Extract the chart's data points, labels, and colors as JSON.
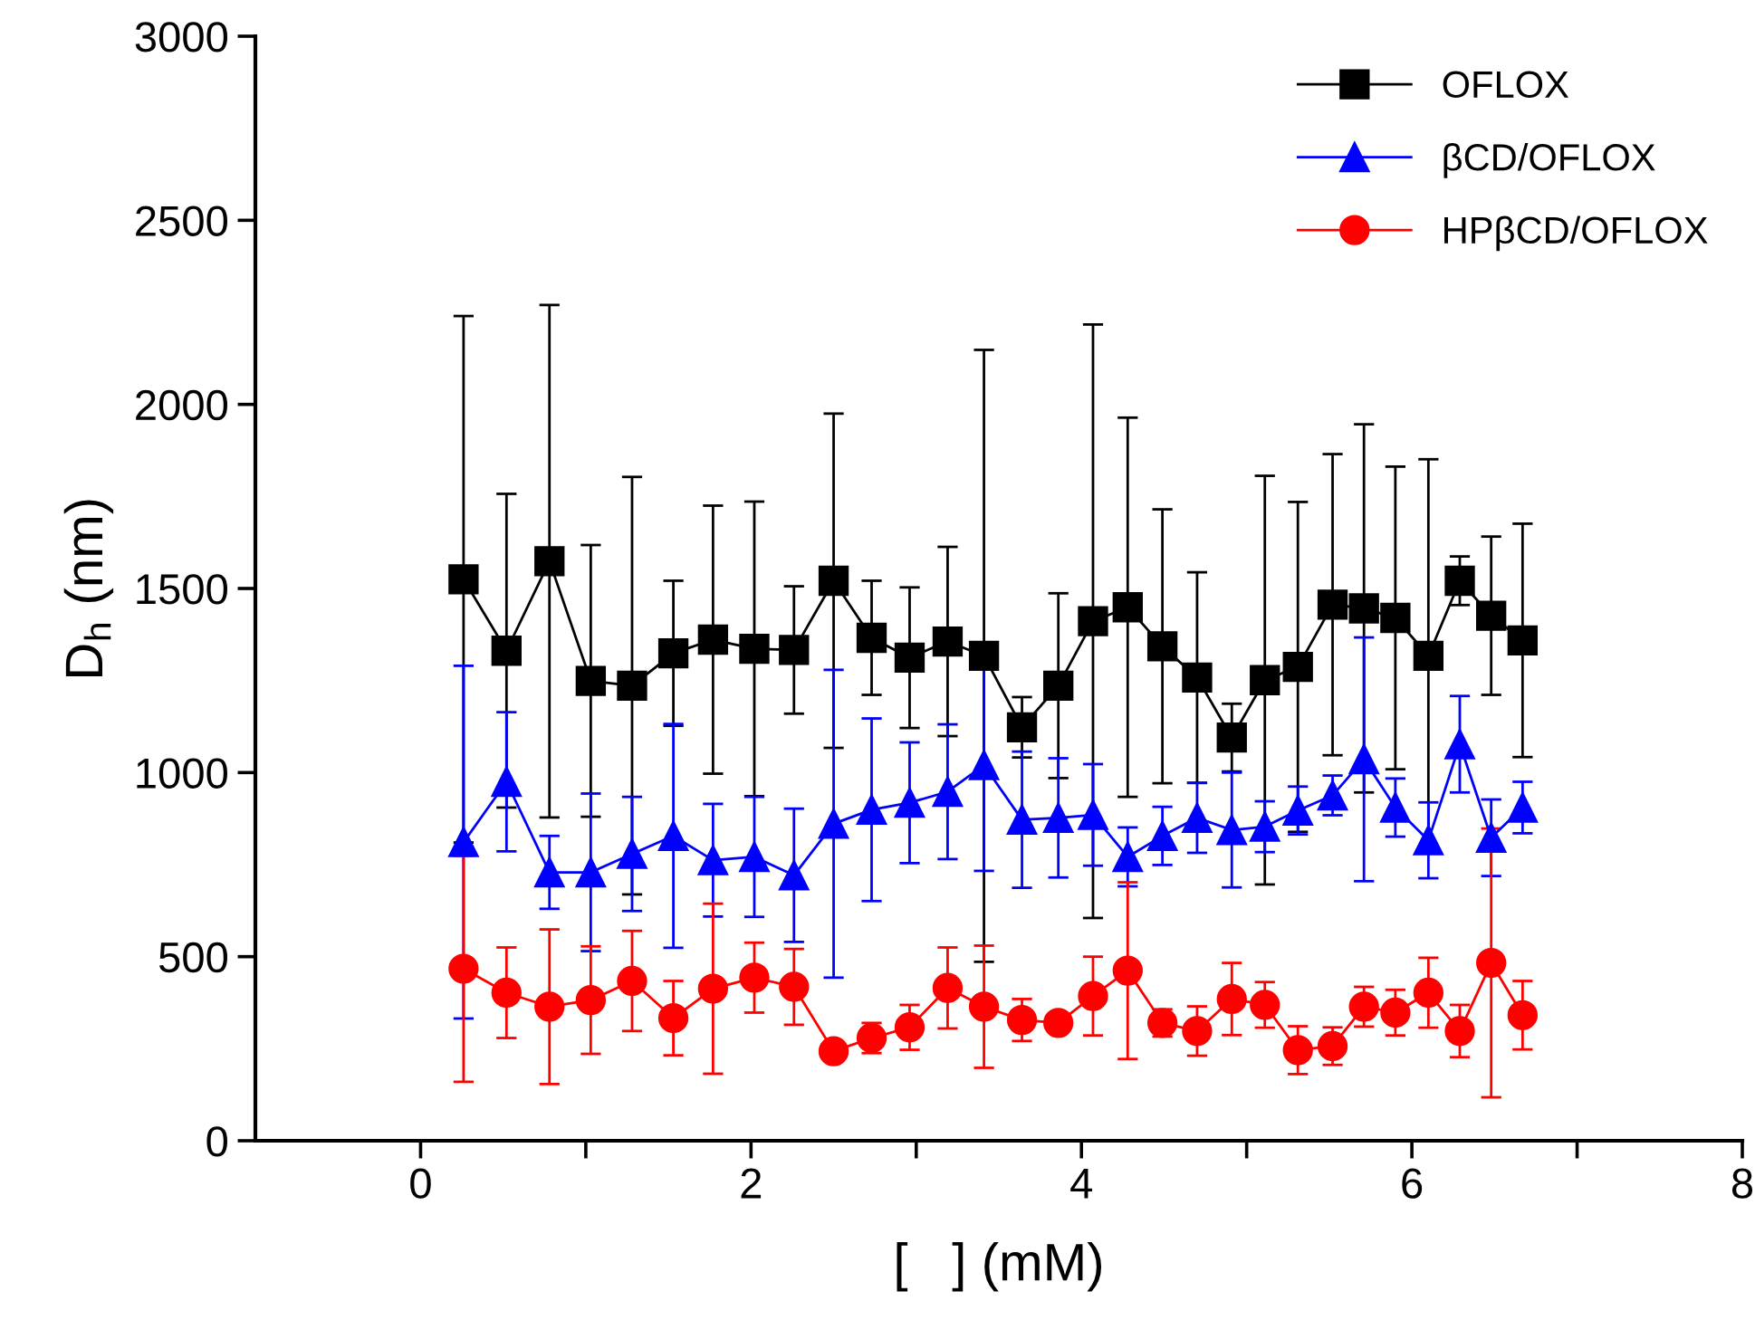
{
  "chart_data": {
    "type": "line",
    "xlabel": "[   ] (mM)",
    "ylabel": "D$_{h}$ (nm)",
    "x": [
      0.26,
      0.52,
      0.78,
      1.03,
      1.28,
      1.53,
      1.77,
      2.02,
      2.26,
      2.5,
      2.73,
      2.96,
      3.19,
      3.41,
      3.64,
      3.86,
      4.07,
      4.28,
      4.49,
      4.7,
      4.91,
      5.11,
      5.31,
      5.52,
      5.71,
      5.9,
      6.1,
      6.29,
      6.48,
      6.67
    ],
    "series": [
      {
        "name": "OFLOX",
        "color": "#000000",
        "marker": "square",
        "values": [
          1525,
          1331,
          1574,
          1249,
          1236,
          1324,
          1361,
          1336,
          1333,
          1521,
          1366,
          1312,
          1356,
          1317,
          1123,
          1236,
          1411,
          1449,
          1343,
          1258,
          1095,
          1251,
          1287,
          1456,
          1446,
          1420,
          1317,
          1521,
          1426,
          1359
        ],
        "errors": [
          715,
          426,
          696,
          369,
          567,
          197,
          364,
          400,
          173,
          454,
          155,
          191,
          257,
          831,
          82,
          251,
          806,
          515,
          372,
          286,
          92,
          555,
          448,
          409,
          500,
          411,
          534,
          66,
          215,
          317
        ]
      },
      {
        "name": "βCD/OFLOX",
        "color": "#0000ff",
        "marker": "triangle",
        "values": [
          811,
          975,
          729,
          729,
          779,
          828,
          762,
          771,
          721,
          861,
          899,
          918,
          948,
          1020,
          872,
          877,
          885,
          771,
          828,
          877,
          844,
          853,
          897,
          938,
          1036,
          905,
          816,
          1077,
          823,
          905
        ],
        "errors": [
          479,
          189,
          99,
          214,
          155,
          304,
          153,
          163,
          181,
          418,
          248,
          164,
          183,
          287,
          185,
          162,
          138,
          80,
          79,
          95,
          156,
          69,
          65,
          54,
          331,
          79,
          103,
          131,
          104,
          70
        ]
      },
      {
        "name": "HPβCD/OFLOX",
        "color": "#ff0000",
        "marker": "circle",
        "values": [
          467,
          402,
          364,
          382,
          434,
          333,
          413,
          443,
          418,
          243,
          279,
          308,
          415,
          364,
          328,
          320,
          393,
          462,
          320,
          298,
          385,
          369,
          246,
          257,
          364,
          348,
          402,
          298,
          483,
          341
        ],
        "errors": [
          307,
          123,
          210,
          146,
          136,
          101,
          231,
          95,
          103,
          25,
          41,
          61,
          110,
          166,
          57,
          20,
          107,
          240,
          37,
          67,
          98,
          62,
          65,
          51,
          54,
          62,
          95,
          71,
          365,
          93
        ]
      }
    ],
    "xlim": [
      -1,
      8
    ],
    "xticks": [
      0,
      {
        "value": 1,
        "label": null
      },
      2,
      {
        "value": 3,
        "label": null
      },
      4,
      {
        "value": 5,
        "label": null
      },
      6,
      {
        "value": 7,
        "label": null
      },
      8
    ],
    "ylim": [
      0,
      3000
    ],
    "yticks": [
      0,
      500,
      1000,
      1500,
      2000,
      2500,
      3000
    ],
    "legend": "top right",
    "grid": false,
    "line_style": "solid"
  }
}
